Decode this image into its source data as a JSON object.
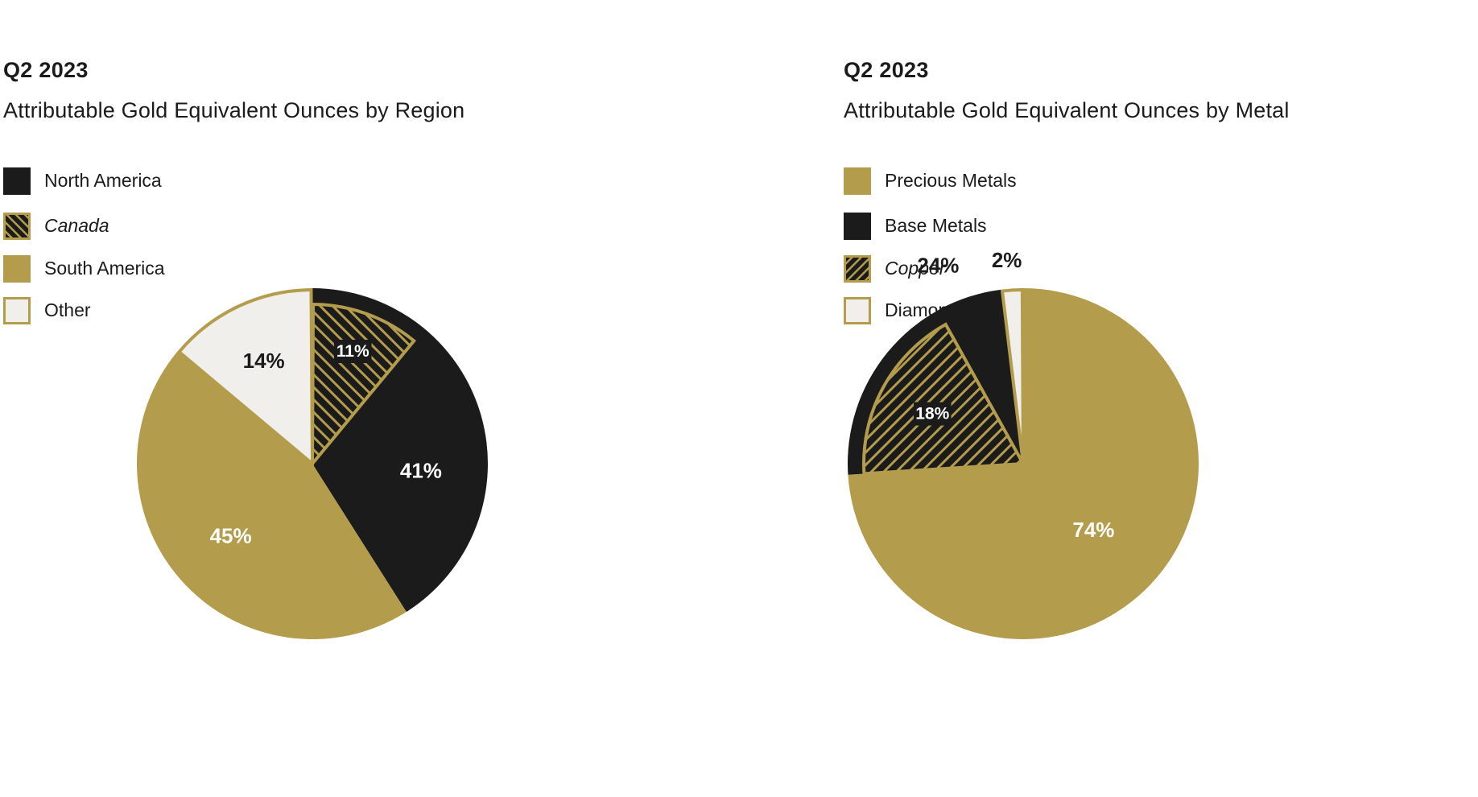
{
  "chart_data": [
    {
      "type": "pie",
      "period": "Q2 2023",
      "title": "Attributable Gold Equivalent Ounces by Region",
      "legend": [
        {
          "label": "North America",
          "style": "solid",
          "color": "#1b1b1b",
          "sub": false
        },
        {
          "label": "Canada",
          "style": "hatch",
          "color": "#1b1b1b",
          "sub": true
        },
        {
          "label": "South America",
          "style": "solid",
          "color": "#b39c4b",
          "sub": false
        },
        {
          "label": "Other",
          "style": "outline",
          "color": "#f0efeb",
          "sub": false
        }
      ],
      "slices": [
        {
          "name": "North America",
          "value": 41,
          "label": "41%",
          "color": "#1b1b1b",
          "label_color": "#ffffff"
        },
        {
          "name": "South America",
          "value": 45,
          "label": "45%",
          "color": "#b39c4b",
          "label_color": "#ffffff"
        },
        {
          "name": "Other",
          "value": 14,
          "label": "14%",
          "color": "#f0efeb",
          "label_color": "#1b1b1b"
        }
      ],
      "sub_slice": {
        "name": "Canada",
        "parent": "North America",
        "value": 11,
        "label": "11%"
      }
    },
    {
      "type": "pie",
      "period": "Q2 2023",
      "title": "Attributable Gold Equivalent Ounces by Metal",
      "legend": [
        {
          "label": "Precious Metals",
          "style": "solid",
          "color": "#b39c4b",
          "sub": false
        },
        {
          "label": "Base Metals",
          "style": "solid",
          "color": "#1b1b1b",
          "sub": false
        },
        {
          "label": "Copper",
          "style": "hatch",
          "color": "#1b1b1b",
          "sub": true
        },
        {
          "label": "Diamonds",
          "style": "outline",
          "color": "#f0efeb",
          "sub": false
        }
      ],
      "slices": [
        {
          "name": "Precious Metals",
          "value": 74,
          "label": "74%",
          "color": "#b39c4b",
          "label_color": "#ffffff"
        },
        {
          "name": "Base Metals",
          "value": 24,
          "label": "24%",
          "color": "#1b1b1b",
          "label_color": "#1b1b1b"
        },
        {
          "name": "Diamonds",
          "value": 2,
          "label": "2%",
          "color": "#f0efeb",
          "label_color": "#1b1b1b"
        }
      ],
      "sub_slice": {
        "name": "Copper",
        "parent": "Base Metals",
        "value": 18,
        "label": "18%"
      }
    }
  ],
  "colors": {
    "gold": "#b39c4b",
    "black": "#1b1b1b",
    "light": "#f0efeb",
    "white": "#ffffff"
  }
}
